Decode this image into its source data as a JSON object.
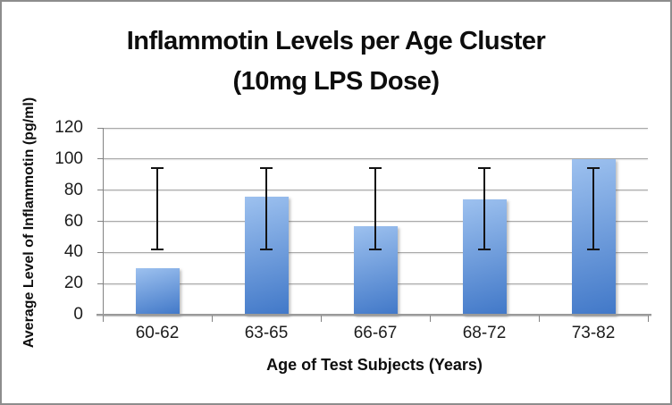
{
  "window": {
    "background_color": "#ffffff",
    "border_color": "#8d8d8d"
  },
  "title": {
    "line1": "Inflammotin Levels per Age Cluster",
    "line2": "(10mg LPS Dose)"
  },
  "chart_data": {
    "type": "bar",
    "title": "Inflammotin Levels per Age Cluster (10mg LPS Dose)",
    "categories": [
      "60-62",
      "63-65",
      "66-67",
      "68-72",
      "73-82"
    ],
    "values": [
      30,
      76,
      57,
      74,
      100
    ],
    "error_bars": {
      "high": [
        94,
        94,
        94,
        94,
        94
      ],
      "low": [
        42,
        42,
        42,
        42,
        42
      ]
    },
    "xlabel": "Age of Test Subjects (Years)",
    "ylabel": "Average Level of Inflammotin (pg/ml)",
    "ylim": [
      0,
      120
    ],
    "yticks": [
      0,
      20,
      40,
      60,
      80,
      100,
      120
    ],
    "grid": "horizontal",
    "legend": "none",
    "colors": {
      "bar_gradient_top": "#9dc1ef",
      "bar_gradient_bottom": "#4178c8",
      "gridline": "#a9a9a9",
      "axis": "#828282",
      "error_bar": "#141414",
      "text": "#0d0d0d"
    }
  }
}
